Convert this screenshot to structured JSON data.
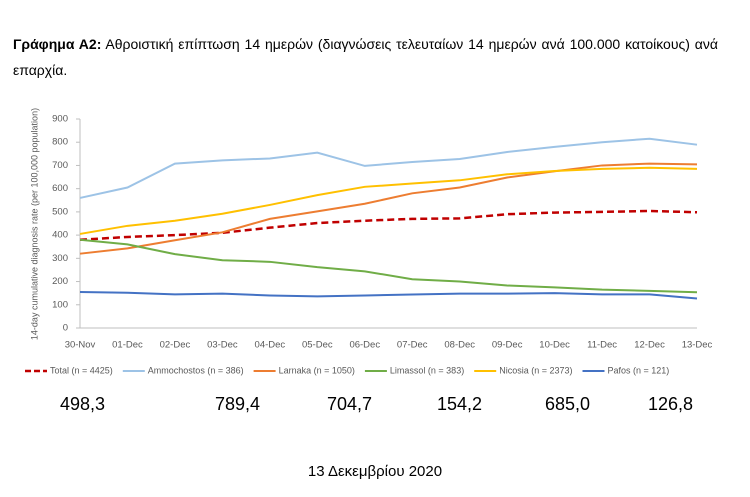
{
  "caption": {
    "label": "Γράφημα Α2:",
    "text": "Αθροιστική επίπτωση 14 ημερών (διαγνώσεις τελευταίων 14 ημερών ανά 100.000 κατοίκους) ανά επαρχία."
  },
  "chart_data": {
    "type": "line",
    "y_label": "14-day cumulative diagnosis rate (per 100,000 population)",
    "categories": [
      "30-Nov",
      "01-Dec",
      "02-Dec",
      "03-Dec",
      "04-Dec",
      "05-Dec",
      "06-Dec",
      "07-Dec",
      "08-Dec",
      "09-Dec",
      "10-Dec",
      "11-Dec",
      "12-Dec",
      "13-Dec"
    ],
    "ylim": [
      0,
      900
    ],
    "yticks": [
      0,
      100,
      200,
      300,
      400,
      500,
      600,
      700,
      800,
      900
    ],
    "series": [
      {
        "name": "Total (n = 4425)",
        "color": "#c00000",
        "dashed": true,
        "values": [
          380,
          392,
          400,
          410,
          432,
          452,
          462,
          470,
          472,
          490,
          497,
          500,
          504,
          498.3
        ]
      },
      {
        "name": "Ammochostos (n = 386)",
        "color": "#9dc3e6",
        "values": [
          560,
          605,
          708,
          722,
          730,
          755,
          698,
          715,
          728,
          758,
          780,
          800,
          815,
          789.4
        ]
      },
      {
        "name": "Larnaka (n = 1050)",
        "color": "#ed7d31",
        "values": [
          320,
          343,
          378,
          412,
          470,
          502,
          535,
          580,
          605,
          648,
          675,
          700,
          708,
          704.7
        ]
      },
      {
        "name": "Limassol (n = 383)",
        "color": "#70ad47",
        "values": [
          380,
          360,
          318,
          292,
          285,
          262,
          244,
          210,
          200,
          183,
          175,
          165,
          160,
          154.2
        ]
      },
      {
        "name": "Nicosia (n = 2373)",
        "color": "#ffc000",
        "values": [
          405,
          440,
          462,
          492,
          530,
          572,
          608,
          622,
          636,
          662,
          676,
          685,
          690,
          685.0
        ]
      },
      {
        "name": "Pafos (n = 121)",
        "color": "#4472c4",
        "values": [
          155,
          152,
          145,
          148,
          140,
          136,
          140,
          144,
          148,
          148,
          150,
          145,
          145,
          126.8
        ]
      }
    ]
  },
  "latest_values": [
    "498,3",
    "789,4",
    "704,7",
    "154,2",
    "685,0",
    "126,8"
  ],
  "date": "13 Δεκεμβρίου 2020"
}
